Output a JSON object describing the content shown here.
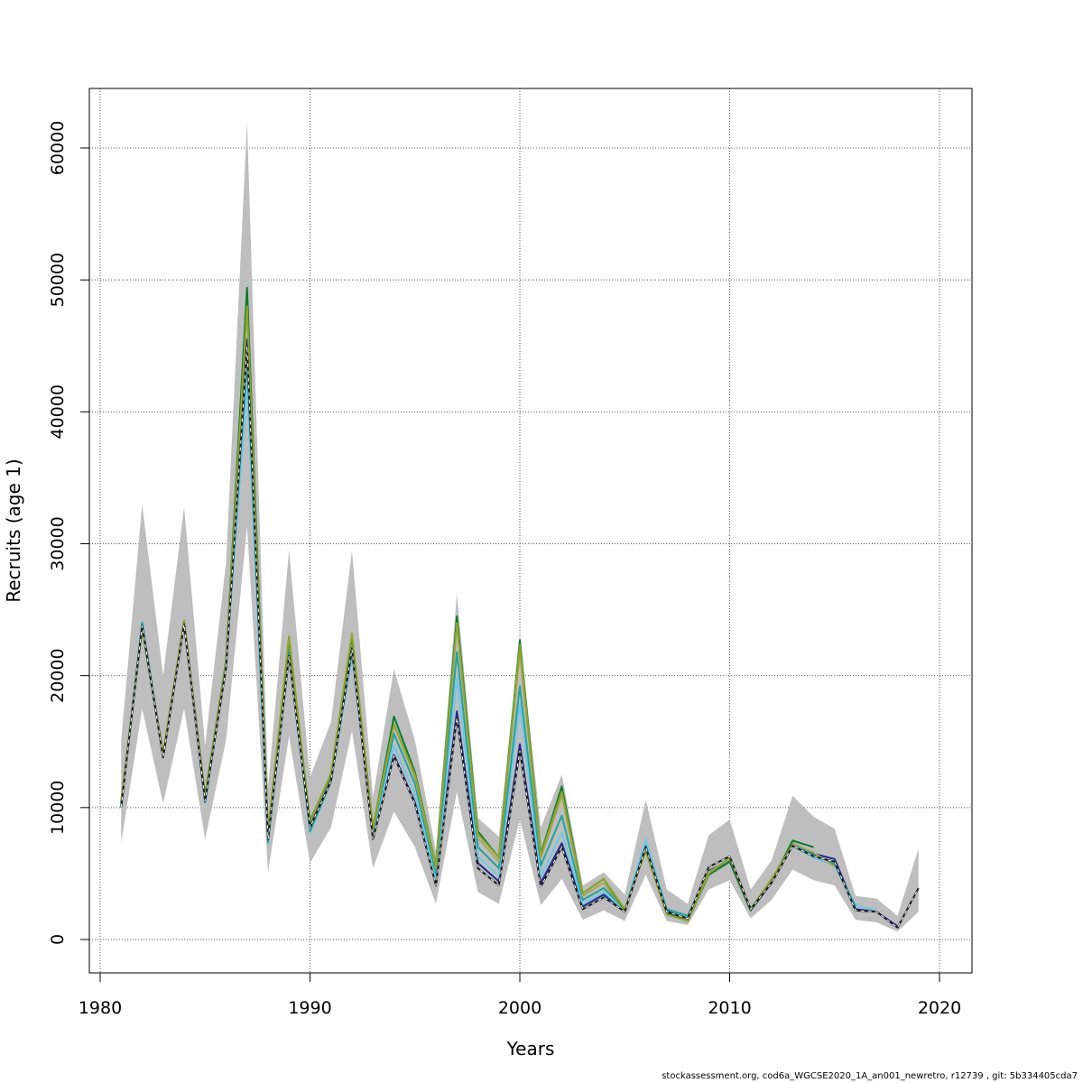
{
  "chart_data": {
    "type": "line",
    "title": "",
    "xlabel": "Years",
    "ylabel": "Recruits (age 1)",
    "xlim": [
      1980,
      2021
    ],
    "ylim": [
      0,
      62000
    ],
    "x_ticks": [
      1980,
      1990,
      2000,
      2010,
      2020
    ],
    "y_ticks": [
      0,
      10000,
      20000,
      30000,
      40000,
      50000,
      60000
    ],
    "grid": true,
    "confidence_band": {
      "x": [
        1981,
        1982,
        1983,
        1984,
        1985,
        1986,
        1987,
        1988,
        1989,
        1990,
        1991,
        1992,
        1993,
        1994,
        1995,
        1996,
        1997,
        1998,
        1999,
        2000,
        2001,
        2002,
        2003,
        2004,
        2005,
        2006,
        2007,
        2008,
        2009,
        2010,
        2011,
        2012,
        2013,
        2014,
        2015,
        2016,
        2017,
        2018,
        2019
      ],
      "lower": [
        7300,
        17500,
        10300,
        17500,
        7600,
        15100,
        31300,
        5100,
        15400,
        5800,
        8500,
        15800,
        5400,
        9700,
        7000,
        2700,
        11200,
        3600,
        2700,
        9100,
        2600,
        4600,
        1500,
        2200,
        1400,
        4900,
        1400,
        1100,
        3800,
        4500,
        1600,
        3000,
        5300,
        4500,
        4100,
        1500,
        1300,
        600,
        2100
      ],
      "upper": [
        15100,
        33000,
        20000,
        32800,
        14700,
        28600,
        62000,
        11500,
        29500,
        12300,
        16500,
        29500,
        10800,
        20500,
        15100,
        6700,
        26200,
        9200,
        7800,
        22900,
        8500,
        12500,
        4100,
        5100,
        3400,
        10600,
        3800,
        2700,
        7900,
        9100,
        3800,
        6000,
        10900,
        9300,
        8400,
        3300,
        3100,
        1800,
        6900
      ]
    },
    "series": [
      {
        "color": "#1b1b1b",
        "dash": true,
        "x": [
          1981,
          1982,
          1983,
          1984,
          1985,
          1986,
          1987,
          1988,
          1989,
          1990,
          1991,
          1992,
          1993,
          1994,
          1995,
          1996,
          1997,
          1998,
          1999,
          2000,
          2001,
          2002,
          2003,
          2004,
          2005,
          2006,
          2007,
          2008,
          2009,
          2010,
          2011,
          2012,
          2013,
          2014,
          2015,
          2016,
          2017,
          2018,
          2019
        ],
        "values": [
          10000,
          23800,
          13800,
          23900,
          10500,
          20600,
          45000,
          7600,
          21500,
          8500,
          12000,
          22000,
          7600,
          13900,
          10300,
          4100,
          16800,
          5400,
          4100,
          14300,
          4000,
          7000,
          2300,
          3200,
          2100,
          7000,
          2100,
          1600,
          5500,
          6300,
          2300,
          4300,
          7100,
          6300,
          5900,
          2200,
          2100,
          900,
          3900
        ]
      },
      {
        "color": "#1f2b8f",
        "x": [
          1981,
          1982,
          1983,
          1984,
          1985,
          1986,
          1987,
          1988,
          1989,
          1990,
          1991,
          1992,
          1993,
          1994,
          1995,
          1996,
          1997,
          1998,
          1999,
          2000,
          2001,
          2002,
          2003,
          2004,
          2005,
          2006,
          2007,
          2008,
          2009,
          2010,
          2011,
          2012,
          2013,
          2014,
          2015,
          2016,
          2017,
          2018
        ],
        "values": [
          10100,
          23900,
          13900,
          24000,
          10600,
          20700,
          45500,
          7700,
          21600,
          8600,
          12100,
          22100,
          7700,
          14000,
          10400,
          4200,
          17300,
          5800,
          4400,
          14800,
          4300,
          7300,
          2500,
          3400,
          2200,
          7100,
          2200,
          1700,
          5200,
          6000,
          2200,
          4300,
          7300,
          6500,
          6100,
          2300,
          2100,
          1000
        ]
      },
      {
        "color": "#6fc8ea",
        "x": [
          1981,
          1982,
          1983,
          1984,
          1985,
          1986,
          1987,
          1988,
          1989,
          1990,
          1991,
          1992,
          1993,
          1994,
          1995,
          1996,
          1997,
          1998,
          1999,
          2000,
          2001,
          2002,
          2003,
          2004,
          2005,
          2006,
          2007,
          2008,
          2009,
          2010,
          2011,
          2012,
          2013,
          2014,
          2015,
          2016,
          2017
        ],
        "values": [
          10200,
          24100,
          14000,
          24100,
          10300,
          20800,
          42000,
          7300,
          21400,
          8100,
          11900,
          21500,
          8000,
          14700,
          11000,
          4500,
          19800,
          6300,
          4800,
          17900,
          4800,
          8100,
          2700,
          3600,
          2200,
          7600,
          2300,
          1700,
          5100,
          6000,
          2200,
          4400,
          7100,
          6200,
          5600,
          2600,
          2200
        ]
      },
      {
        "color": "#20a39e",
        "x": [
          1981,
          1982,
          1983,
          1984,
          1985,
          1986,
          1987,
          1988,
          1989,
          1990,
          1991,
          1992,
          1993,
          1994,
          1995,
          1996,
          1997,
          1998,
          1999,
          2000,
          2001,
          2002,
          2003,
          2004,
          2005,
          2006,
          2007,
          2008,
          2009,
          2010,
          2011,
          2012,
          2013,
          2014,
          2015,
          2016
        ],
        "values": [
          10300,
          24000,
          14000,
          24100,
          10400,
          20800,
          44000,
          7400,
          21800,
          8200,
          12000,
          21800,
          8200,
          15600,
          11800,
          5000,
          21800,
          7000,
          5400,
          19200,
          5600,
          9400,
          3000,
          3900,
          2300,
          7100,
          2300,
          1800,
          5100,
          6000,
          2300,
          4400,
          7300,
          6400,
          5700,
          2500
        ]
      },
      {
        "color": "#a8a85a",
        "x": [
          1981,
          1982,
          1983,
          1984,
          1985,
          1986,
          1987,
          1988,
          1989,
          1990,
          1991,
          1992,
          1993,
          1994,
          1995,
          1996,
          1997,
          1998,
          1999,
          2000,
          2001,
          2002,
          2003,
          2004,
          2005,
          2006,
          2007,
          2008,
          2009,
          2010,
          2011,
          2012,
          2013,
          2014,
          2015
        ],
        "values": [
          10400,
          23700,
          14000,
          24100,
          10800,
          21000,
          47900,
          8100,
          22900,
          8900,
          12400,
          23000,
          8300,
          16300,
          12300,
          5400,
          23900,
          7700,
          5900,
          21800,
          6200,
          10900,
          3300,
          4300,
          2200,
          6800,
          2000,
          1500,
          5100,
          6100,
          2200,
          4500,
          7300,
          6600,
          5500
        ]
      },
      {
        "color": "#0d7a2d",
        "x": [
          1981,
          1982,
          1983,
          1984,
          1985,
          1986,
          1987,
          1988,
          1989,
          1990,
          1991,
          1992,
          1993,
          1994,
          1995,
          1996,
          1997,
          1998,
          1999,
          2000,
          2001,
          2002,
          2003,
          2004,
          2005,
          2006,
          2007,
          2008,
          2009,
          2010,
          2011,
          2012,
          2013,
          2014
        ],
        "values": [
          10400,
          23600,
          14000,
          24100,
          10900,
          21100,
          49400,
          8000,
          22800,
          9000,
          12500,
          23000,
          8400,
          16900,
          12700,
          5600,
          24500,
          8200,
          6200,
          22700,
          6500,
          11600,
          3500,
          4600,
          2200,
          6800,
          2000,
          1400,
          4900,
          5900,
          2200,
          4400,
          7500,
          7000
        ]
      },
      {
        "color": "#8fa52a",
        "x": [
          1981,
          1982,
          1983,
          1984,
          1985,
          1986,
          1987,
          1988,
          1989,
          1990,
          1991,
          1992,
          1993,
          1994,
          1995,
          1996,
          1997,
          1998,
          1999,
          2000,
          2001,
          2002,
          2003,
          2004,
          2005,
          2006,
          2007,
          2008,
          2009,
          2010,
          2011,
          2012,
          2013
        ],
        "values": [
          10500,
          23600,
          14100,
          24200,
          10800,
          21000,
          48000,
          8100,
          23000,
          8900,
          12600,
          23200,
          8500,
          16300,
          12500,
          5600,
          24000,
          8000,
          6200,
          22300,
          6400,
          11200,
          3500,
          4600,
          2300,
          6700,
          1900,
          1400,
          5000,
          6200,
          2300,
          4600,
          7200
        ]
      }
    ]
  },
  "footer": "stockassessment.org, cod6a_WGCSE2020_1A_an001_newretro, r12739 , git: 5b334405cda7"
}
